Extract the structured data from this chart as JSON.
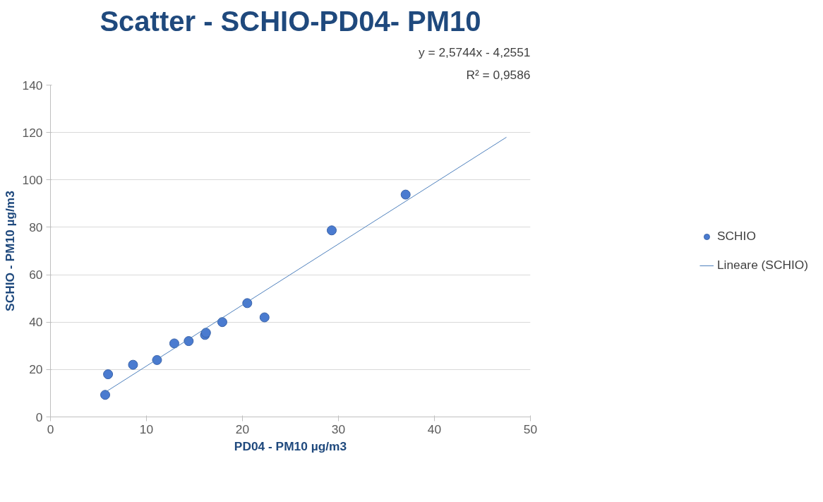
{
  "chart_data": {
    "type": "scatter",
    "title": "Scatter - SCHIO-PD04- PM10",
    "xlabel": "PD04 - PM10 µg/m3",
    "ylabel": "SCHIO - PM10 µg/m3",
    "annotations": [
      "y = 2,5744x - 4,2551",
      "R² = 0,9586"
    ],
    "xlim": [
      0,
      50
    ],
    "xticks": [
      0,
      10,
      20,
      30,
      40,
      50
    ],
    "ylim": [
      0,
      140
    ],
    "yticks": [
      0,
      20,
      40,
      60,
      80,
      100,
      120,
      140
    ],
    "grid": "y",
    "legend": "right",
    "marker": "circle",
    "series": [
      {
        "name": "SCHIO",
        "color": "#4a7bd0",
        "x": [
          5.7,
          6.0,
          8.6,
          11.1,
          12.9,
          14.4,
          16.1,
          16.2,
          17.9,
          20.5,
          22.3,
          29.3,
          37.0
        ],
        "values": [
          9.3,
          18,
          22,
          24,
          31,
          32,
          34.6,
          35.5,
          40,
          48,
          42,
          78.7,
          93.8
        ]
      },
      {
        "name": "Lineare (SCHIO)",
        "type": "line",
        "marker": "none",
        "line_style": "solid",
        "color": "#4f81bd",
        "x": [
          5.7,
          47.5
        ],
        "values": [
          10.4,
          118.0
        ]
      }
    ]
  }
}
